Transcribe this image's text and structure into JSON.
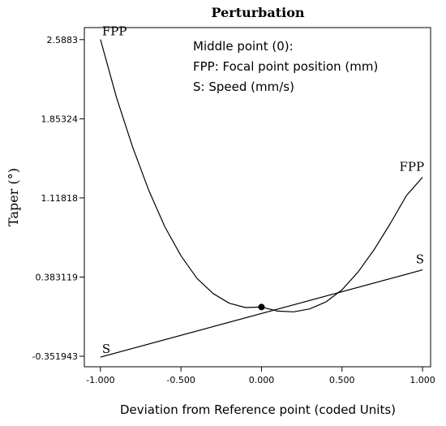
{
  "chart_data": {
    "type": "line",
    "title": "Perturbation",
    "xlabel": "Deviation from Reference point (coded Units)",
    "ylabel": "Taper (°)",
    "xlim": [
      -1.1,
      1.05
    ],
    "ylim": [
      -0.45,
      2.7
    ],
    "x_ticks": [
      "-1.000",
      "-0.500",
      "0.000",
      "0.500",
      "1.000"
    ],
    "x_tick_values": [
      -1.0,
      -0.5,
      0.0,
      0.5,
      1.0
    ],
    "y_ticks": [
      "-0.351943",
      "0.383119",
      "1.11818",
      "1.85324",
      "2.5883"
    ],
    "y_tick_values": [
      -0.351943,
      0.383119,
      1.11818,
      1.85324,
      2.5883
    ],
    "grid": false,
    "legend_text": {
      "line1": "Middle point (0):",
      "line2": "FPP: Focal point position (mm)",
      "line3": "S: Speed (mm/s)"
    },
    "reference_point": {
      "x": 0.0,
      "y": 0.105
    },
    "series": [
      {
        "name": "FPP",
        "color": "#000000",
        "x": [
          -1.0,
          -0.9,
          -0.8,
          -0.7,
          -0.6,
          -0.5,
          -0.4,
          -0.3,
          -0.2,
          -0.1,
          0.0,
          0.1,
          0.2,
          0.3,
          0.4,
          0.5,
          0.6,
          0.7,
          0.8,
          0.9,
          1.0
        ],
        "y": [
          2.59,
          2.05,
          1.59,
          1.19,
          0.85,
          0.58,
          0.37,
          0.23,
          0.14,
          0.1,
          0.105,
          0.067,
          0.06,
          0.087,
          0.152,
          0.265,
          0.43,
          0.64,
          0.88,
          1.14,
          1.31
        ]
      },
      {
        "name": "S",
        "color": "#000000",
        "x": [
          -1.0,
          1.0
        ],
        "y": [
          -0.36,
          0.45
        ]
      }
    ]
  }
}
